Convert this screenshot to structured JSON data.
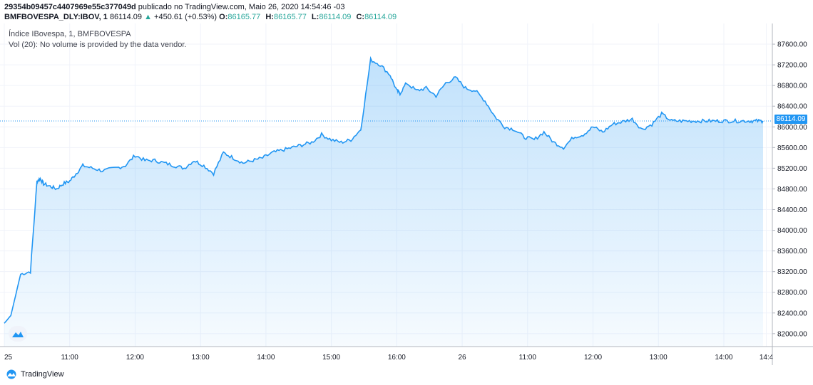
{
  "header": {
    "author_id": "29354b09457c4407969e55c377049d",
    "published_text": "publicado no TradingView.com, Maio 26, 2020 14:54:46 -03",
    "symbol": "BMFBOVESPA_DLY:IBOV, 1",
    "last": "86114.09",
    "change": "+450.61 (+0.53%)",
    "open_label": "O:",
    "open": "86165.77",
    "high_label": "H:",
    "high": "86165.77",
    "low_label": "L:",
    "low": "86114.09",
    "close_label": "C:",
    "close": "86114.09"
  },
  "legend": {
    "title": "Índice IBovespa, 1, BMFBOVESPA",
    "volume": "Vol (20): No volume is provided by the data vendor."
  },
  "price_tag": "86114.09",
  "footer": {
    "brand": "TradingView",
    "icon": "tradingview-logo-icon"
  },
  "colors": {
    "line": "#2196f3",
    "fill": "#2196f3",
    "up": "#26a69a"
  },
  "chart_data": {
    "type": "area",
    "title": "Índice IBovespa, 1, BMFBOVESPA",
    "ylim": [
      81750,
      88000
    ],
    "y_ticks": [
      "87600.00",
      "87200.00",
      "86800.00",
      "86400.00",
      "86000.00",
      "85600.00",
      "85200.00",
      "84800.00",
      "84400.00",
      "84000.00",
      "83600.00",
      "83200.00",
      "82800.00",
      "82400.00",
      "82000.00"
    ],
    "x_tick_labels": [
      "25",
      "11:00",
      "12:00",
      "13:00",
      "14:00",
      "15:00",
      "16:00",
      "26",
      "11:00",
      "12:00",
      "13:00",
      "14:00",
      "14:4"
    ],
    "grid": true,
    "last_price": 86114.09,
    "x": [
      0,
      0.1,
      0.25,
      0.4,
      0.5,
      0.55,
      0.6,
      0.7,
      0.8,
      0.9,
      1.0,
      1.1,
      1.2,
      1.35,
      1.5,
      1.7,
      1.85,
      2.0,
      2.15,
      2.3,
      2.45,
      2.6,
      2.75,
      2.9,
      3.05,
      3.2,
      3.35,
      3.5,
      3.65,
      3.8,
      3.95,
      4.1,
      4.25,
      4.4,
      4.55,
      4.7,
      4.85,
      5.0,
      5.15,
      5.3,
      5.45,
      5.6,
      5.75,
      5.9,
      6.0,
      6.05,
      6.15,
      6.3,
      6.45,
      6.6,
      6.75,
      6.9,
      7.05,
      7.2,
      7.35,
      7.5,
      7.65,
      7.8,
      7.95,
      8.1,
      8.25,
      8.4,
      8.55,
      8.7,
      8.85,
      9.0,
      9.15,
      9.3,
      9.45,
      9.6,
      9.75,
      9.9,
      10.05,
      10.2,
      10.35,
      10.5,
      10.65,
      10.8,
      10.95,
      11.1,
      11.25,
      11.4,
      11.5,
      11.6
    ],
    "y": [
      82200,
      82350,
      83150,
      83200,
      84950,
      85000,
      84900,
      84850,
      84800,
      84900,
      84950,
      85100,
      85250,
      85200,
      85150,
      85200,
      85250,
      85450,
      85350,
      85350,
      85300,
      85250,
      85200,
      85350,
      85250,
      85100,
      85500,
      85400,
      85300,
      85350,
      85400,
      85500,
      85550,
      85600,
      85650,
      85700,
      85850,
      85750,
      85700,
      85750,
      85950,
      87300,
      87200,
      87000,
      86700,
      86650,
      86850,
      86700,
      86750,
      86600,
      86850,
      86950,
      86750,
      86700,
      86500,
      86200,
      86000,
      85950,
      85800,
      85750,
      85900,
      85700,
      85600,
      85800,
      85850,
      86000,
      85900,
      86050,
      86100,
      86150,
      85950,
      86050,
      86250,
      86114,
      86114,
      86114,
      86114,
      86114,
      86114,
      86114,
      86114,
      86114,
      86114,
      86114
    ]
  }
}
